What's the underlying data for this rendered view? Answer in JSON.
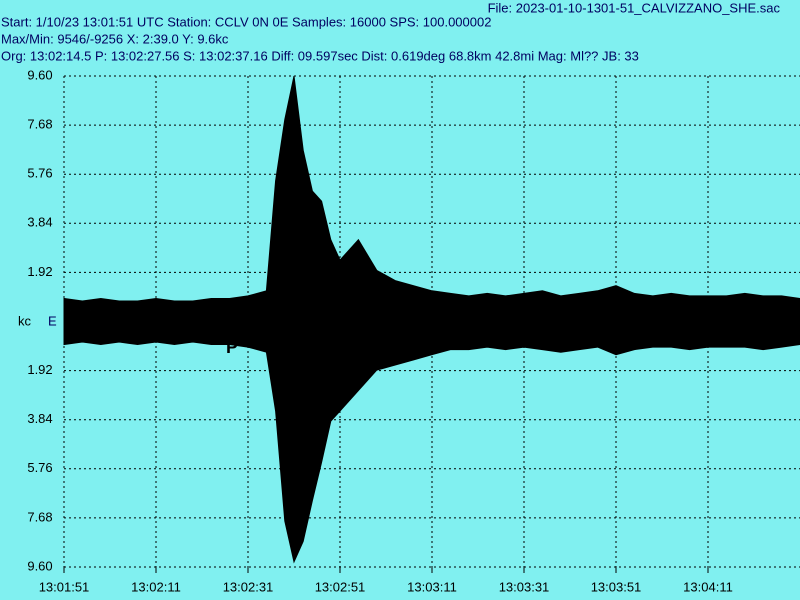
{
  "chart_data": {
    "type": "seismogram",
    "file": "File: 2023-01-10-1301-51_CALVIZZANO_SHE.sac",
    "header_lines": [
      "Start: 1/10/23 13:01:51 UTC Station: CCLV 0N 0E Samples: 16000  SPS: 100.000002",
      "Max/Min: 9546/-9256 X: 2:39.0 Y: 9.6kc",
      "Org: 13:02:14.5 P: 13:02:27.56 S: 13:02:37.16 Diff: 09.597sec Dist: 0.619deg 68.8km 42.8mi  Mag: Ml?? JB: 33"
    ],
    "y_unit": "kc",
    "channel": "E",
    "phase_label": "P",
    "x": [
      0,
      4,
      8,
      12,
      16,
      20,
      24,
      28,
      32,
      36,
      40,
      44,
      46,
      48,
      50,
      52,
      54,
      56,
      58,
      60,
      64,
      68,
      72,
      76,
      80,
      84,
      88,
      92,
      96,
      100,
      104,
      108,
      112,
      116,
      120,
      124,
      128,
      132,
      136,
      140,
      144,
      148,
      152,
      156,
      160
    ],
    "series": [
      {
        "color": "#000000",
        "values": [
          0.9,
          0.8,
          0.9,
          0.8,
          0.8,
          0.9,
          0.8,
          0.8,
          0.9,
          0.9,
          1.0,
          1.2,
          5.5,
          7.9,
          9.6,
          6.7,
          5.1,
          4.7,
          3.2,
          2.4,
          3.2,
          2.0,
          1.6,
          1.4,
          1.2,
          1.1,
          1.0,
          1.1,
          1.0,
          1.1,
          1.2,
          1.0,
          1.1,
          1.2,
          1.4,
          1.1,
          1.0,
          1.1,
          1.0,
          1.0,
          1.0,
          1.1,
          1.0,
          1.0,
          0.9
        ]
      },
      {
        "color": "#000000",
        "values": [
          -0.9,
          -0.8,
          -0.9,
          -0.8,
          -0.9,
          -0.8,
          -0.9,
          -0.8,
          -0.9,
          -0.9,
          -1.0,
          -1.2,
          -3.5,
          -7.8,
          -9.4,
          -8.6,
          -7.0,
          -5.5,
          -3.9,
          -3.5,
          -2.7,
          -1.9,
          -1.7,
          -1.5,
          -1.3,
          -1.1,
          -1.1,
          -1.0,
          -1.1,
          -1.0,
          -1.1,
          -1.2,
          -1.1,
          -1.0,
          -1.3,
          -1.1,
          -1.0,
          -1.0,
          -1.1,
          -1.0,
          -1.0,
          -1.0,
          -1.1,
          -1.0,
          -0.9
        ]
      }
    ],
    "xlim": [
      0,
      160
    ],
    "xticks": [
      {
        "value": 0,
        "label": "13:01:51"
      },
      {
        "value": 20,
        "label": "13:02:11"
      },
      {
        "value": 40,
        "label": "13:02:31"
      },
      {
        "value": 60,
        "label": "13:02:51"
      },
      {
        "value": 80,
        "label": "13:03:11"
      },
      {
        "value": 100,
        "label": "13:03:31"
      },
      {
        "value": 120,
        "label": "13:03:51"
      },
      {
        "value": 140,
        "label": "13:04:11"
      }
    ],
    "ylim": [
      -9.6,
      9.6
    ],
    "yticks": [
      {
        "value": 9.6,
        "label": "9.60"
      },
      {
        "value": 7.68,
        "label": "7.68"
      },
      {
        "value": 5.76,
        "label": "5.76"
      },
      {
        "value": 3.84,
        "label": "3.84"
      },
      {
        "value": 1.92,
        "label": "1.92"
      },
      {
        "value": -1.92,
        "label": "1.92"
      },
      {
        "value": -3.84,
        "label": "3.84"
      },
      {
        "value": -5.76,
        "label": "5.76"
      },
      {
        "value": -7.68,
        "label": "7.68"
      },
      {
        "value": -9.6,
        "label": "9.60"
      }
    ],
    "grid": true
  }
}
